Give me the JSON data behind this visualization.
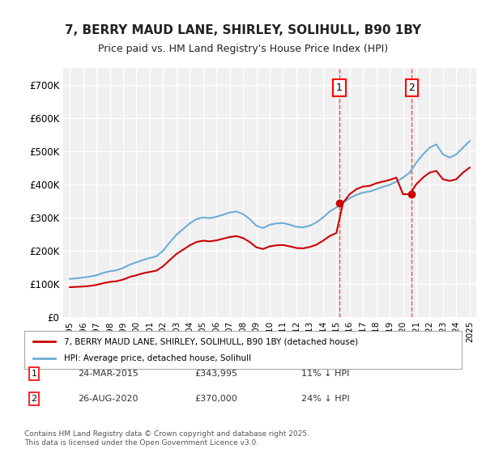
{
  "title": "7, BERRY MAUD LANE, SHIRLEY, SOLIHULL, B90 1BY",
  "subtitle": "Price paid vs. HM Land Registry's House Price Index (HPI)",
  "xlabel": "",
  "ylabel": "",
  "ylim": [
    0,
    750000
  ],
  "yticks": [
    0,
    100000,
    200000,
    300000,
    400000,
    500000,
    600000,
    700000
  ],
  "ytick_labels": [
    "£0",
    "£100K",
    "£200K",
    "£300K",
    "£400K",
    "£500K",
    "£600K",
    "£700K"
  ],
  "background_color": "#ffffff",
  "plot_bg_color": "#f0f0f0",
  "grid_color": "#ffffff",
  "hpi_color": "#6baed6",
  "price_color": "#cc0000",
  "sale1_date": "24-MAR-2015",
  "sale1_price": 343995,
  "sale1_hpi": "11% ↓ HPI",
  "sale1_x": 2015.23,
  "sale2_date": "26-AUG-2020",
  "sale2_price": 370000,
  "sale2_hpi": "24% ↓ HPI",
  "sale2_x": 2020.65,
  "legend_line1": "7, BERRY MAUD LANE, SHIRLEY, SOLIHULL, B90 1BY (detached house)",
  "legend_line2": "HPI: Average price, detached house, Solihull",
  "footer": "Contains HM Land Registry data © Crown copyright and database right 2025.\nThis data is licensed under the Open Government Licence v3.0.",
  "hpi_data": {
    "years": [
      1995.0,
      1995.5,
      1996.0,
      1996.5,
      1997.0,
      1997.5,
      1998.0,
      1998.5,
      1999.0,
      1999.5,
      2000.0,
      2000.5,
      2001.0,
      2001.5,
      2002.0,
      2002.5,
      2003.0,
      2003.5,
      2004.0,
      2004.5,
      2005.0,
      2005.5,
      2006.0,
      2006.5,
      2007.0,
      2007.5,
      2008.0,
      2008.5,
      2009.0,
      2009.5,
      2010.0,
      2010.5,
      2011.0,
      2011.5,
      2012.0,
      2012.5,
      2013.0,
      2013.5,
      2014.0,
      2014.5,
      2015.0,
      2015.5,
      2016.0,
      2016.5,
      2017.0,
      2017.5,
      2018.0,
      2018.5,
      2019.0,
      2019.5,
      2020.0,
      2020.5,
      2021.0,
      2021.5,
      2022.0,
      2022.5,
      2023.0,
      2023.5,
      2024.0,
      2024.5,
      2025.0
    ],
    "values": [
      115000,
      117000,
      119000,
      122000,
      126000,
      133000,
      138000,
      141000,
      148000,
      158000,
      165000,
      172000,
      178000,
      183000,
      200000,
      225000,
      248000,
      265000,
      282000,
      295000,
      300000,
      298000,
      302000,
      308000,
      315000,
      318000,
      310000,
      295000,
      275000,
      268000,
      278000,
      282000,
      283000,
      278000,
      272000,
      270000,
      275000,
      285000,
      300000,
      318000,
      330000,
      345000,
      358000,
      368000,
      375000,
      378000,
      385000,
      392000,
      398000,
      408000,
      420000,
      435000,
      465000,
      490000,
      510000,
      520000,
      490000,
      480000,
      490000,
      510000,
      530000
    ]
  },
  "price_data": {
    "years": [
      1995.0,
      1995.5,
      1996.0,
      1996.5,
      1997.0,
      1997.5,
      1998.0,
      1998.5,
      1999.0,
      1999.5,
      2000.0,
      2000.5,
      2001.0,
      2001.5,
      2002.0,
      2002.5,
      2003.0,
      2003.5,
      2004.0,
      2004.5,
      2005.0,
      2005.5,
      2006.0,
      2006.5,
      2007.0,
      2007.5,
      2008.0,
      2008.5,
      2009.0,
      2009.5,
      2010.0,
      2010.5,
      2011.0,
      2011.5,
      2012.0,
      2012.5,
      2013.0,
      2013.5,
      2014.0,
      2014.5,
      2015.0,
      2015.5,
      2016.0,
      2016.5,
      2017.0,
      2017.5,
      2018.0,
      2018.5,
      2019.0,
      2019.5,
      2020.0,
      2020.5,
      2021.0,
      2021.5,
      2022.0,
      2022.5,
      2023.0,
      2023.5,
      2024.0,
      2024.5,
      2025.0
    ],
    "values": [
      90000,
      91000,
      92000,
      94000,
      97000,
      102000,
      106000,
      108000,
      113000,
      121000,
      126000,
      132000,
      136000,
      140000,
      153000,
      172000,
      190000,
      203000,
      216000,
      226000,
      230000,
      228000,
      231000,
      236000,
      241000,
      244000,
      238000,
      226000,
      210000,
      205000,
      213000,
      216000,
      217000,
      213000,
      208000,
      207000,
      211000,
      218000,
      230000,
      244000,
      253000,
      343995,
      370000,
      385000,
      393000,
      395000,
      403000,
      408000,
      413000,
      420000,
      370000,
      370000,
      400000,
      420000,
      435000,
      440000,
      415000,
      410000,
      415000,
      435000,
      450000
    ]
  }
}
